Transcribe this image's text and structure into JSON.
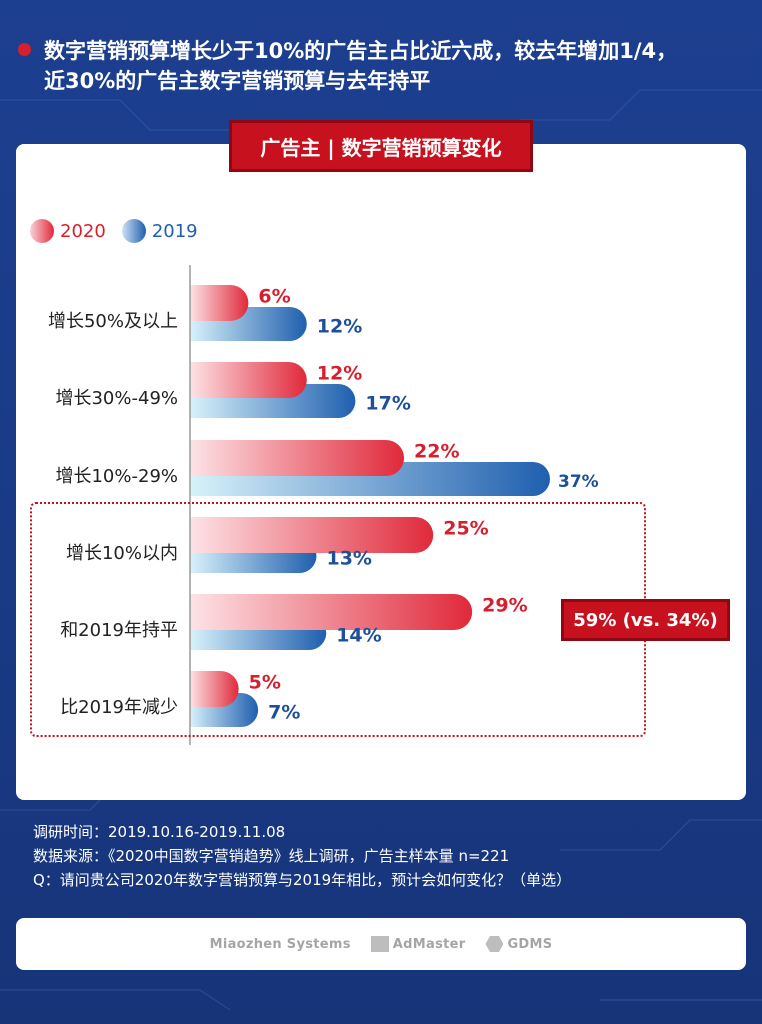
{
  "headline": {
    "line1": "数字营销预算增长少于10%的广告主占比近六成，较去年增加1/4，",
    "line2": "近30%的广告主数字营销预算与去年持平"
  },
  "chart_title": "广告主 | 数字营销预算变化",
  "chart_data": {
    "type": "bar",
    "orientation": "horizontal",
    "categories": [
      "增长50%及以上",
      "增长30%-49%",
      "增长10%-29%",
      "增长10%以内",
      "和2019年持平",
      "比2019年减少"
    ],
    "series": [
      {
        "name": "2020",
        "values": [
          6,
          12,
          22,
          25,
          29,
          5
        ],
        "labels": [
          "6%",
          "12%",
          "22%",
          "25%",
          "29%",
          "5%"
        ],
        "color": "#e0293a"
      },
      {
        "name": "2019",
        "values": [
          12,
          17,
          37,
          13,
          14,
          7
        ],
        "labels": [
          "12%",
          "17%",
          "37%",
          "13%",
          "14%",
          "7%"
        ],
        "color": "#1f5fae"
      }
    ],
    "xlim": [
      0,
      40
    ],
    "grid": false,
    "legend": "top-left",
    "annotation": "59% (vs. 34%)"
  },
  "notes": {
    "line1": "调研时间：2019.10.16-2019.11.08",
    "line2": "数据来源：《2020中国数字营销趋势》线上调研，广告主样本量 n=221",
    "line3": "Q：请问贵公司2020年数字营销预算与2019年相比，预计会如何变化？（单选）"
  },
  "logos": {
    "miaozhen": "Miaozhen Systems",
    "admaster": "AdMaster",
    "gdms": "GDMS"
  },
  "colors": {
    "accent_red": "#c8111e",
    "bar_2020": "#e0293a",
    "bar_2019": "#1f5fae",
    "background": "#1a3a86"
  }
}
